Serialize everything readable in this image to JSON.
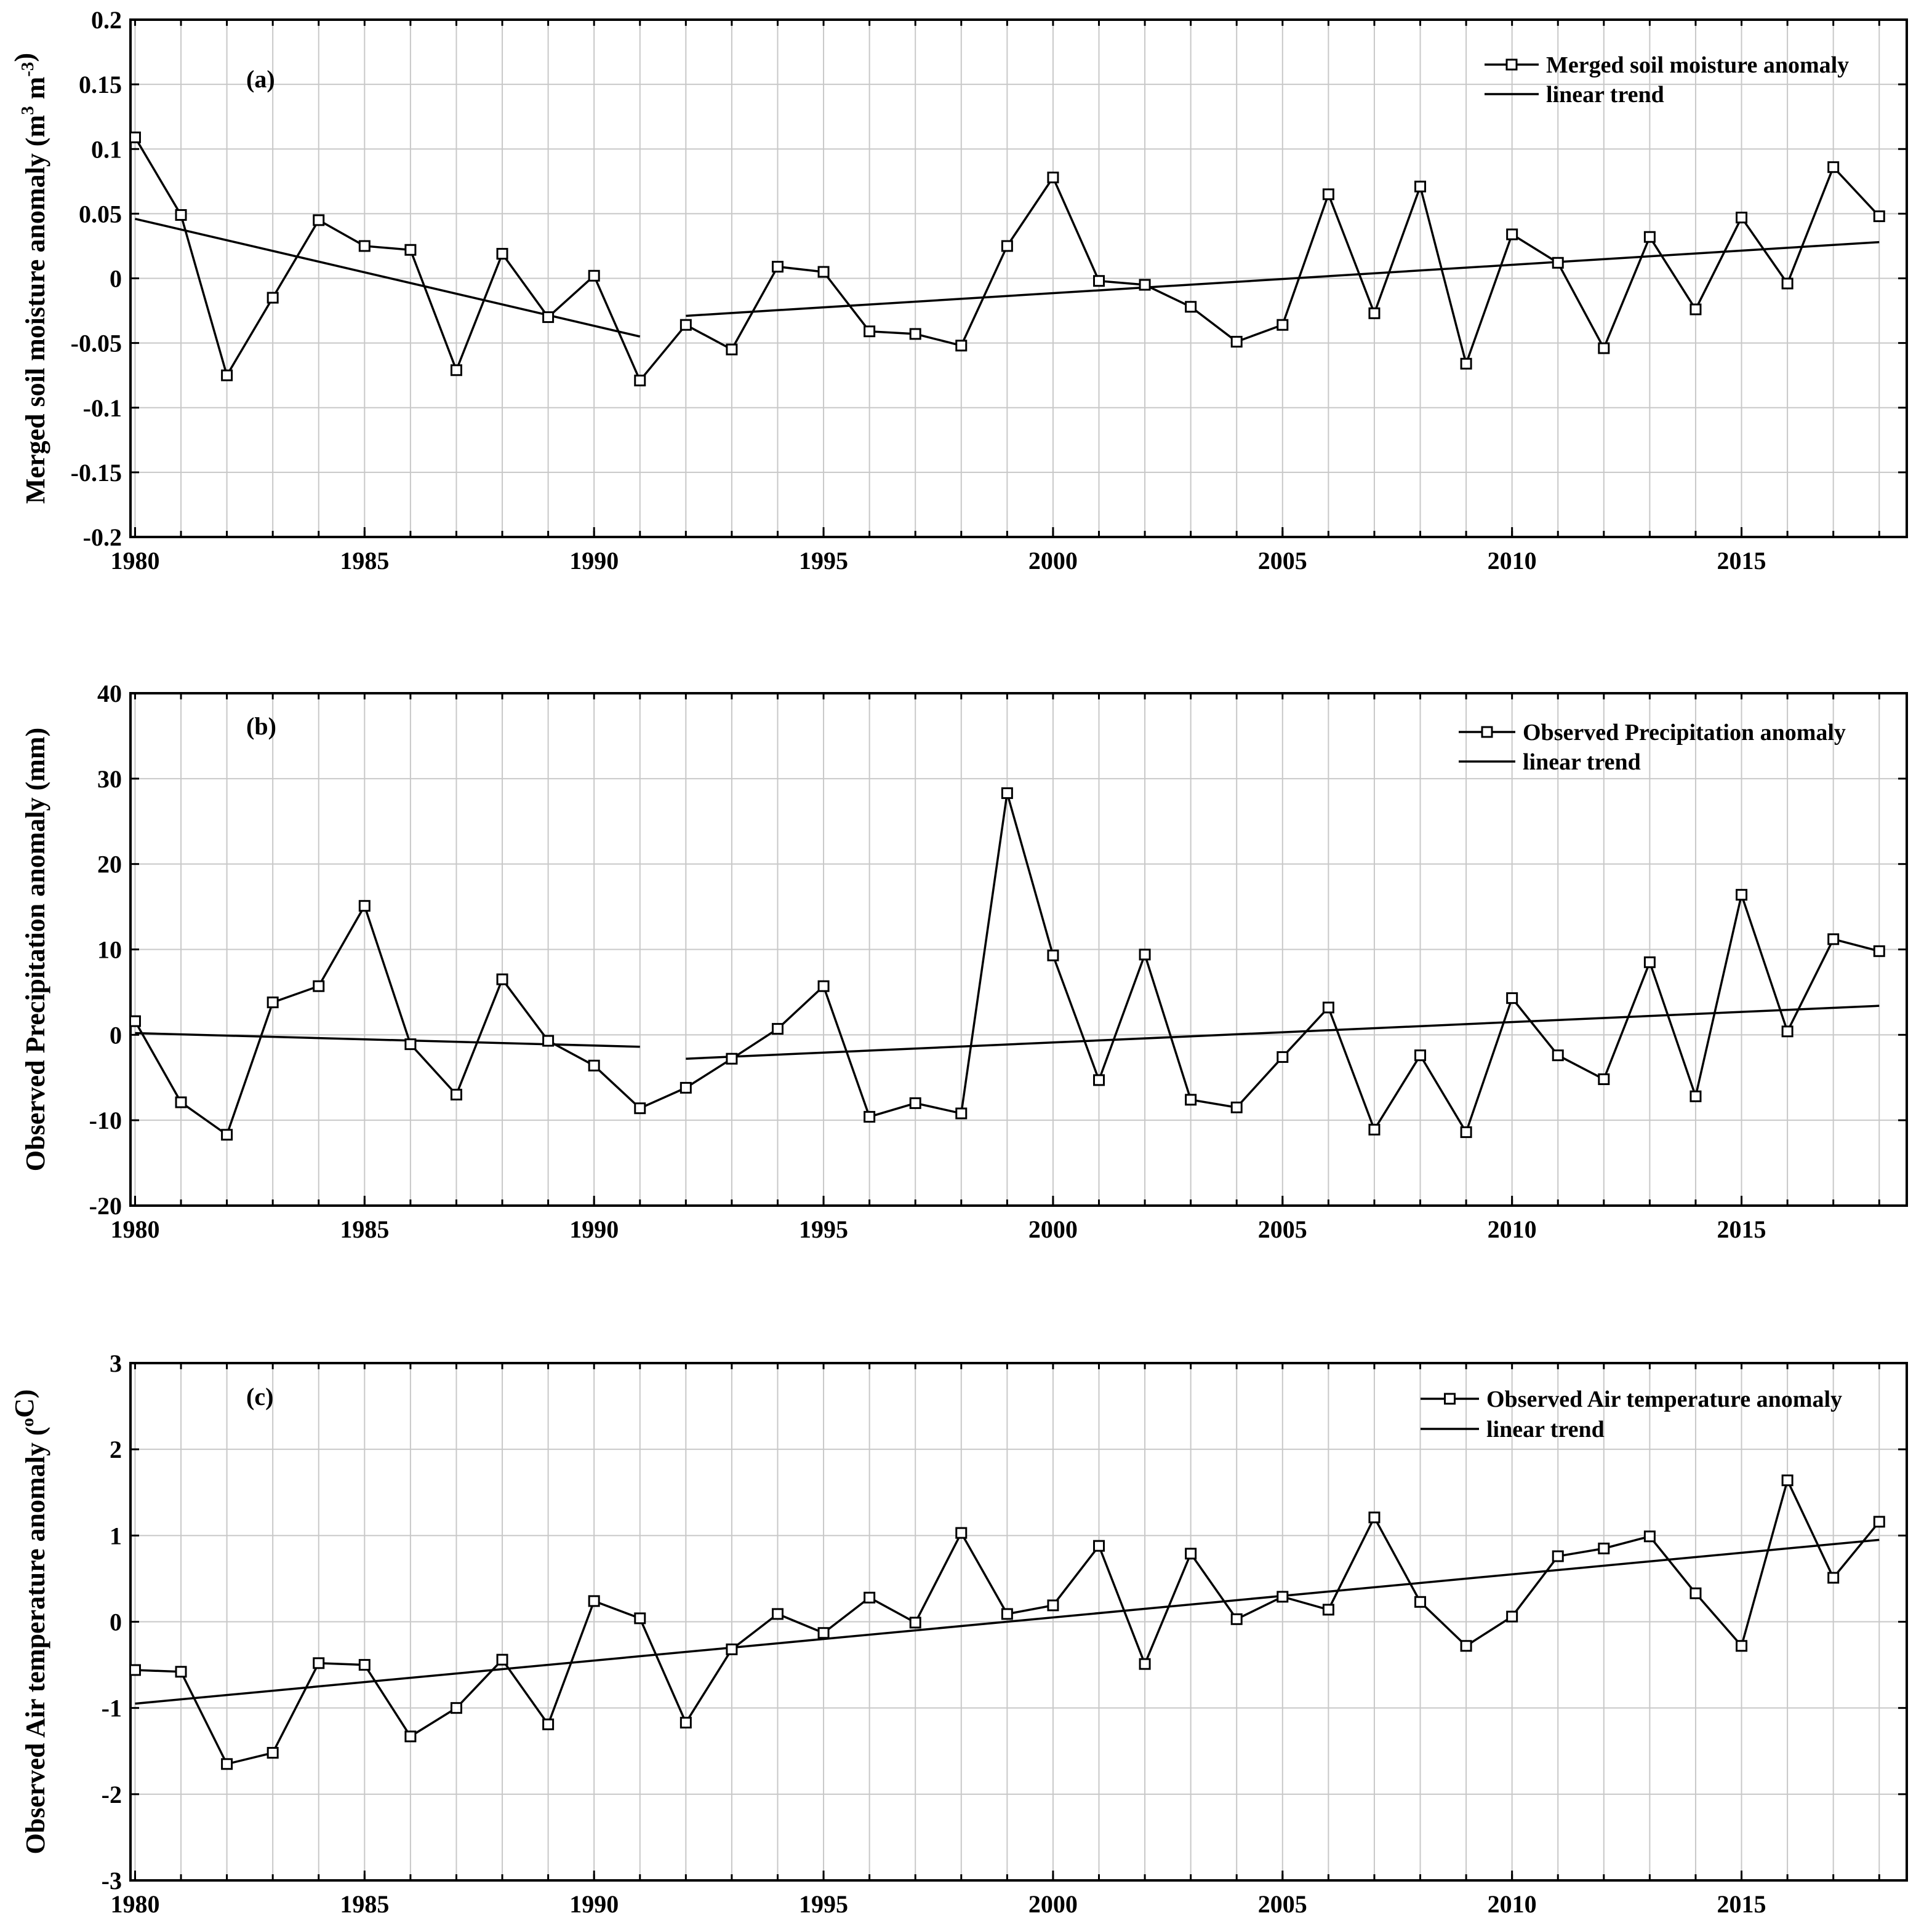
{
  "chart_data": [
    {
      "type": "line",
      "panel_label": "(a)",
      "ylabel": {
        "text": "Merged soil moisture anomaly (m",
        "sup1": "3",
        "mid": " m",
        "sup2": "-3",
        "end": ")"
      },
      "ylim": [
        -0.2,
        0.2
      ],
      "yticks": [
        -0.2,
        -0.15,
        -0.1,
        -0.05,
        0,
        0.05,
        0.1,
        0.15,
        0.2
      ],
      "ytick_labels": [
        "-0.2",
        "-0.15",
        "-0.1",
        "-0.05",
        "0",
        "0.05",
        "0.1",
        "0.15",
        "0.2"
      ],
      "xlim": [
        1979.9,
        2018.6
      ],
      "xticks": [
        1980,
        1985,
        1990,
        1995,
        2000,
        2005,
        2010,
        2015
      ],
      "xtick_labels": [
        "1980",
        "1985",
        "1990",
        "1995",
        "2000",
        "2005",
        "2010",
        "2015"
      ],
      "grid": true,
      "legend": {
        "position": "top-right",
        "entries": [
          "Merged soil moisture anomaly",
          "linear trend"
        ]
      },
      "series": [
        {
          "name": "Merged soil moisture anomaly",
          "x": [
            1980,
            1981,
            1982,
            1983,
            1984,
            1985,
            1986,
            1987,
            1988,
            1989,
            1990,
            1991,
            1992,
            1993,
            1994,
            1995,
            1996,
            1997,
            1998,
            1999,
            2000,
            2001,
            2002,
            2003,
            2004,
            2005,
            2006,
            2007,
            2008,
            2009,
            2010,
            2011,
            2012,
            2013,
            2014,
            2015,
            2016,
            2017,
            2018
          ],
          "values": [
            0.109,
            0.049,
            -0.075,
            -0.015,
            0.045,
            0.025,
            0.022,
            -0.071,
            0.019,
            -0.03,
            0.002,
            -0.079,
            -0.036,
            -0.055,
            0.009,
            0.005,
            -0.041,
            -0.043,
            -0.052,
            0.025,
            0.078,
            -0.002,
            -0.005,
            -0.022,
            -0.049,
            -0.036,
            0.065,
            -0.027,
            0.071,
            -0.066,
            0.034,
            0.012,
            -0.054,
            0.032,
            -0.024,
            0.047,
            -0.004,
            0.086,
            0.048
          ]
        }
      ],
      "trends": [
        {
          "name": "linear trend",
          "x": [
            1980,
            1991
          ],
          "values": [
            0.046,
            -0.045
          ]
        },
        {
          "name": "linear trend",
          "x": [
            1992,
            2018
          ],
          "values": [
            -0.029,
            0.028
          ]
        }
      ]
    },
    {
      "type": "line",
      "panel_label": "(b)",
      "ylabel": {
        "text": "Observed Precipitation anomaly (mm)"
      },
      "ylim": [
        -20,
        40
      ],
      "yticks": [
        -20,
        -10,
        0,
        10,
        20,
        30,
        40
      ],
      "ytick_labels": [
        "-20",
        "-10",
        "0",
        "10",
        "20",
        "30",
        "40"
      ],
      "xlim": [
        1979.9,
        2018.6
      ],
      "xticks": [
        1980,
        1985,
        1990,
        1995,
        2000,
        2005,
        2010,
        2015
      ],
      "xtick_labels": [
        "1980",
        "1985",
        "1990",
        "1995",
        "2000",
        "2005",
        "2010",
        "2015"
      ],
      "grid": true,
      "legend": {
        "position": "top-right",
        "entries": [
          "Observed Precipitation anomaly",
          "linear trend"
        ]
      },
      "series": [
        {
          "name": "Observed Precipitation anomaly",
          "x": [
            1980,
            1981,
            1982,
            1983,
            1984,
            1985,
            1986,
            1987,
            1988,
            1989,
            1990,
            1991,
            1992,
            1993,
            1994,
            1995,
            1996,
            1997,
            1998,
            1999,
            2000,
            2001,
            2002,
            2003,
            2004,
            2005,
            2006,
            2007,
            2008,
            2009,
            2010,
            2011,
            2012,
            2013,
            2014,
            2015,
            2016,
            2017,
            2018
          ],
          "values": [
            1.6,
            -7.9,
            -11.7,
            3.8,
            5.7,
            15.1,
            -1.1,
            -7.0,
            6.5,
            -0.7,
            -3.6,
            -8.6,
            -6.2,
            -2.8,
            0.7,
            5.7,
            -9.6,
            -8.0,
            -9.2,
            28.3,
            9.3,
            -5.3,
            9.4,
            -7.6,
            -8.5,
            -2.6,
            3.2,
            -11.1,
            -2.4,
            -11.4,
            4.3,
            -2.4,
            -5.2,
            8.5,
            -7.2,
            16.4,
            0.4,
            11.2,
            9.8
          ]
        }
      ],
      "trends": [
        {
          "name": "linear trend",
          "x": [
            1980,
            1991
          ],
          "values": [
            0.2,
            -1.4
          ]
        },
        {
          "name": "linear trend",
          "x": [
            1992,
            2018
          ],
          "values": [
            -2.8,
            3.4
          ]
        }
      ]
    },
    {
      "type": "line",
      "panel_label": "(c)",
      "ylabel": {
        "text": "Observed Air temperature anomaly (",
        "sup1": "o",
        "end": "C)"
      },
      "ylim": [
        -3,
        3
      ],
      "yticks": [
        -3,
        -2,
        -1,
        0,
        1,
        2,
        3
      ],
      "ytick_labels": [
        "-3",
        "-2",
        "-1",
        "0",
        "1",
        "2",
        "3"
      ],
      "xlim": [
        1979.9,
        2018.6
      ],
      "xticks": [
        1980,
        1985,
        1990,
        1995,
        2000,
        2005,
        2010,
        2015
      ],
      "xtick_labels": [
        "1980",
        "1985",
        "1990",
        "1995",
        "2000",
        "2005",
        "2010",
        "2015"
      ],
      "grid": true,
      "legend": {
        "position": "top-right",
        "entries": [
          "Observed Air temperature anomaly",
          "linear trend"
        ]
      },
      "series": [
        {
          "name": "Observed Air temperature anomaly",
          "x": [
            1980,
            1981,
            1982,
            1983,
            1984,
            1985,
            1986,
            1987,
            1988,
            1989,
            1990,
            1991,
            1992,
            1993,
            1994,
            1995,
            1996,
            1997,
            1998,
            1999,
            2000,
            2001,
            2002,
            2003,
            2004,
            2005,
            2006,
            2007,
            2008,
            2009,
            2010,
            2011,
            2012,
            2013,
            2014,
            2015,
            2016,
            2017,
            2018
          ],
          "values": [
            -0.56,
            -0.58,
            -1.65,
            -1.52,
            -0.48,
            -0.5,
            -1.33,
            -1.0,
            -0.44,
            -1.19,
            0.24,
            0.04,
            -1.17,
            -0.32,
            0.09,
            -0.13,
            0.28,
            -0.01,
            1.03,
            0.09,
            0.19,
            0.88,
            -0.49,
            0.79,
            0.03,
            0.29,
            0.14,
            1.21,
            0.23,
            -0.28,
            0.06,
            0.76,
            0.85,
            0.99,
            0.33,
            -0.28,
            1.64,
            0.51,
            1.16
          ]
        }
      ],
      "trends": [
        {
          "name": "linear trend",
          "x": [
            1980,
            2018
          ],
          "values": [
            -0.95,
            0.95
          ]
        }
      ]
    }
  ]
}
